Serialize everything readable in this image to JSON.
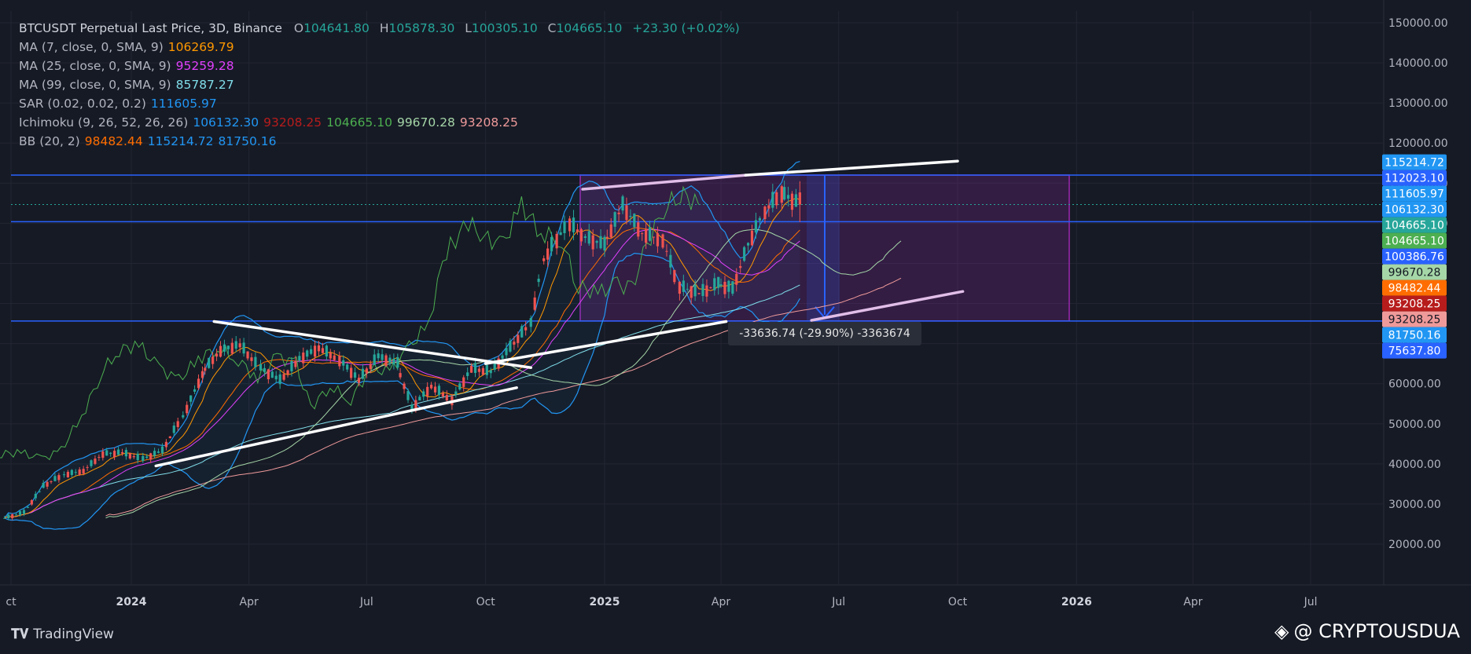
{
  "legend": {
    "title": "BTCUSDT Perpetual Last Price, 3D, Binance",
    "ohlc": [
      {
        "k": "O",
        "v": "104641.80"
      },
      {
        "k": "H",
        "v": "105878.30"
      },
      {
        "k": "L",
        "v": "100305.10"
      },
      {
        "k": "C",
        "v": "104665.10"
      }
    ],
    "change": "+23.30 (+0.02%)",
    "change_color": "#26a69a",
    "indicators": [
      {
        "label": "MA (7, close, 0, SMA, 9)",
        "values": [
          {
            "v": "106269.79",
            "c": "#ff9800"
          }
        ]
      },
      {
        "label": "MA (25, close, 0, SMA, 9)",
        "values": [
          {
            "v": "95259.28",
            "c": "#e040fb"
          }
        ]
      },
      {
        "label": "MA (99, close, 0, SMA, 9)",
        "values": [
          {
            "v": "85787.27",
            "c": "#80deea"
          }
        ]
      },
      {
        "label": "SAR (0.02, 0.02, 0.2)",
        "values": [
          {
            "v": "111605.97",
            "c": "#2196f3"
          }
        ]
      },
      {
        "label": "Ichimoku (9, 26, 52, 26, 26)",
        "values": [
          {
            "v": "106132.30",
            "c": "#2196f3"
          },
          {
            "v": "93208.25",
            "c": "#b71c1c"
          },
          {
            "v": "104665.10",
            "c": "#4caf50"
          },
          {
            "v": "99670.28",
            "c": "#a5d6a7"
          },
          {
            "v": "93208.25",
            "c": "#ef9a9a"
          }
        ]
      },
      {
        "label": "BB (20, 2)",
        "values": [
          {
            "v": "98482.44",
            "c": "#ff6d00"
          },
          {
            "v": "115214.72",
            "c": "#2196f3"
          },
          {
            "v": "81750.16",
            "c": "#2196f3"
          }
        ]
      }
    ]
  },
  "measure_tooltip": "-33636.74 (-29.90%) -3363674",
  "brand": "TradingView",
  "watermark": "@ CRYPTOUSDUA",
  "chart_data": {
    "type": "candlestick",
    "title": "BTCUSDT Perpetual Last Price, 3D, Binance",
    "x_tick_labels": [
      "ct",
      "2024",
      "Apr",
      "Jul",
      "Oct",
      "2025",
      "Apr",
      "Jul",
      "Oct",
      "2026",
      "Apr",
      "Jul"
    ],
    "x_tick_dates": [
      "2023-10-01",
      "2024-01-01",
      "2024-04-01",
      "2024-07-01",
      "2024-10-01",
      "2025-01-01",
      "2025-04-01",
      "2025-07-01",
      "2025-10-01",
      "2026-01-01",
      "2026-04-01",
      "2026-07-01"
    ],
    "y_tick_labels": [
      "20000.00",
      "30000.00",
      "40000.00",
      "50000.00",
      "60000.00",
      "70000.00",
      "80000.00",
      "90000.00",
      "100000.00",
      "110000.00",
      "120000.00",
      "130000.00",
      "140000.00",
      "150000.00"
    ],
    "ylim": [
      10000,
      155000
    ],
    "price_tags": [
      {
        "v": 115214.72,
        "text": "115214.72",
        "bg": "#2196f3",
        "fg": "#ffffff"
      },
      {
        "v": 112023.1,
        "text": "112023.10",
        "bg": "#2962ff",
        "fg": "#ffffff"
      },
      {
        "v": 111605.97,
        "text": "111605.97",
        "bg": "#2196f3",
        "fg": "#ffffff"
      },
      {
        "v": 106132.3,
        "text": "106132.30",
        "bg": "#2196f3",
        "fg": "#ffffff"
      },
      {
        "v": 104665.1,
        "text": "104665.10",
        "bg": "#26a69a",
        "fg": "#ffffff"
      },
      {
        "v": 104665.1,
        "text": "104665.10",
        "bg": "#4caf50",
        "fg": "#ffffff"
      },
      {
        "v": 100386.76,
        "text": "100386.76",
        "bg": "#2962ff",
        "fg": "#ffffff"
      },
      {
        "v": 99670.28,
        "text": "99670.28",
        "bg": "#a5d6a7",
        "fg": "#131722"
      },
      {
        "v": 98482.44,
        "text": "98482.44",
        "bg": "#ff6d00",
        "fg": "#ffffff"
      },
      {
        "v": 93208.25,
        "text": "93208.25",
        "bg": "#b71c1c",
        "fg": "#ffffff"
      },
      {
        "v": 93208.25,
        "text": "93208.25",
        "bg": "#ef9a9a",
        "fg": "#131722"
      },
      {
        "v": 81750.16,
        "text": "81750.16",
        "bg": "#2196f3",
        "fg": "#ffffff"
      },
      {
        "v": 75637.8,
        "text": "75637.80",
        "bg": "#2962ff",
        "fg": "#ffffff"
      }
    ],
    "horizontal_levels": [
      112023.1,
      100386.76,
      75637.8
    ],
    "last_price": 104665.1,
    "candles_3d_approx": [
      [
        "2023-09-25",
        26300,
        26800,
        25900,
        26500
      ],
      [
        "2023-10-10",
        26500,
        28200,
        26300,
        27900
      ],
      [
        "2023-10-25",
        27900,
        35000,
        27700,
        34500
      ],
      [
        "2023-11-10",
        34500,
        37900,
        34000,
        37300
      ],
      [
        "2023-11-25",
        37300,
        38800,
        36800,
        38300
      ],
      [
        "2023-12-10",
        38300,
        44500,
        38000,
        42500
      ],
      [
        "2023-12-25",
        42500,
        45900,
        41000,
        42800
      ],
      [
        "2024-01-10",
        42800,
        48900,
        38800,
        41200
      ],
      [
        "2024-01-25",
        41200,
        43800,
        39500,
        43300
      ],
      [
        "2024-02-10",
        43300,
        52800,
        42800,
        51800
      ],
      [
        "2024-02-25",
        51800,
        64000,
        50900,
        62500
      ],
      [
        "2024-03-10",
        62500,
        73800,
        60800,
        68400
      ],
      [
        "2024-03-25",
        68400,
        71800,
        64500,
        69700
      ],
      [
        "2024-04-10",
        69700,
        72700,
        59700,
        63900
      ],
      [
        "2024-04-25",
        63900,
        65500,
        56500,
        60800
      ],
      [
        "2024-05-10",
        60800,
        67000,
        60200,
        66200
      ],
      [
        "2024-05-25",
        66200,
        71900,
        66000,
        69000
      ],
      [
        "2024-06-10",
        69000,
        70500,
        64800,
        66000
      ],
      [
        "2024-06-25",
        66000,
        67200,
        59800,
        61000
      ],
      [
        "2024-07-10",
        61000,
        67500,
        54100,
        66800
      ],
      [
        "2024-07-25",
        66800,
        70000,
        63800,
        65000
      ],
      [
        "2024-08-05",
        65000,
        65500,
        49500,
        54000
      ],
      [
        "2024-08-20",
        54000,
        64800,
        53800,
        59400
      ],
      [
        "2024-09-05",
        59400,
        60300,
        52500,
        56000
      ],
      [
        "2024-09-20",
        56000,
        66500,
        55900,
        63800
      ],
      [
        "2024-10-05",
        63800,
        66000,
        58900,
        62900
      ],
      [
        "2024-10-20",
        62900,
        73600,
        62500,
        69000
      ],
      [
        "2024-11-05",
        69000,
        76500,
        67500,
        75000
      ],
      [
        "2024-11-15",
        75000,
        93500,
        74800,
        91000
      ],
      [
        "2024-11-25",
        91000,
        99600,
        90500,
        96000
      ],
      [
        "2024-12-05",
        96000,
        104000,
        90500,
        100000
      ],
      [
        "2024-12-17",
        100000,
        108300,
        92200,
        96500
      ],
      [
        "2025-01-01",
        96500,
        102700,
        91200,
        94500
      ],
      [
        "2025-01-15",
        94500,
        109600,
        92800,
        104500
      ],
      [
        "2025-01-30",
        104500,
        106000,
        91200,
        97500
      ],
      [
        "2025-02-15",
        97500,
        99500,
        93300,
        96000
      ],
      [
        "2025-02-28",
        96000,
        97200,
        78200,
        84300
      ],
      [
        "2025-03-15",
        84300,
        92700,
        76600,
        82500
      ],
      [
        "2025-03-30",
        82500,
        88500,
        76400,
        84900
      ],
      [
        "2025-04-10",
        84900,
        86400,
        74500,
        83600
      ],
      [
        "2025-04-22",
        83600,
        95600,
        83000,
        94700
      ],
      [
        "2025-05-05",
        94700,
        104300,
        93400,
        103000
      ],
      [
        "2025-05-18",
        103000,
        111900,
        101500,
        107700
      ],
      [
        "2025-06-01",
        107700,
        110500,
        100300,
        104665.1
      ]
    ]
  }
}
